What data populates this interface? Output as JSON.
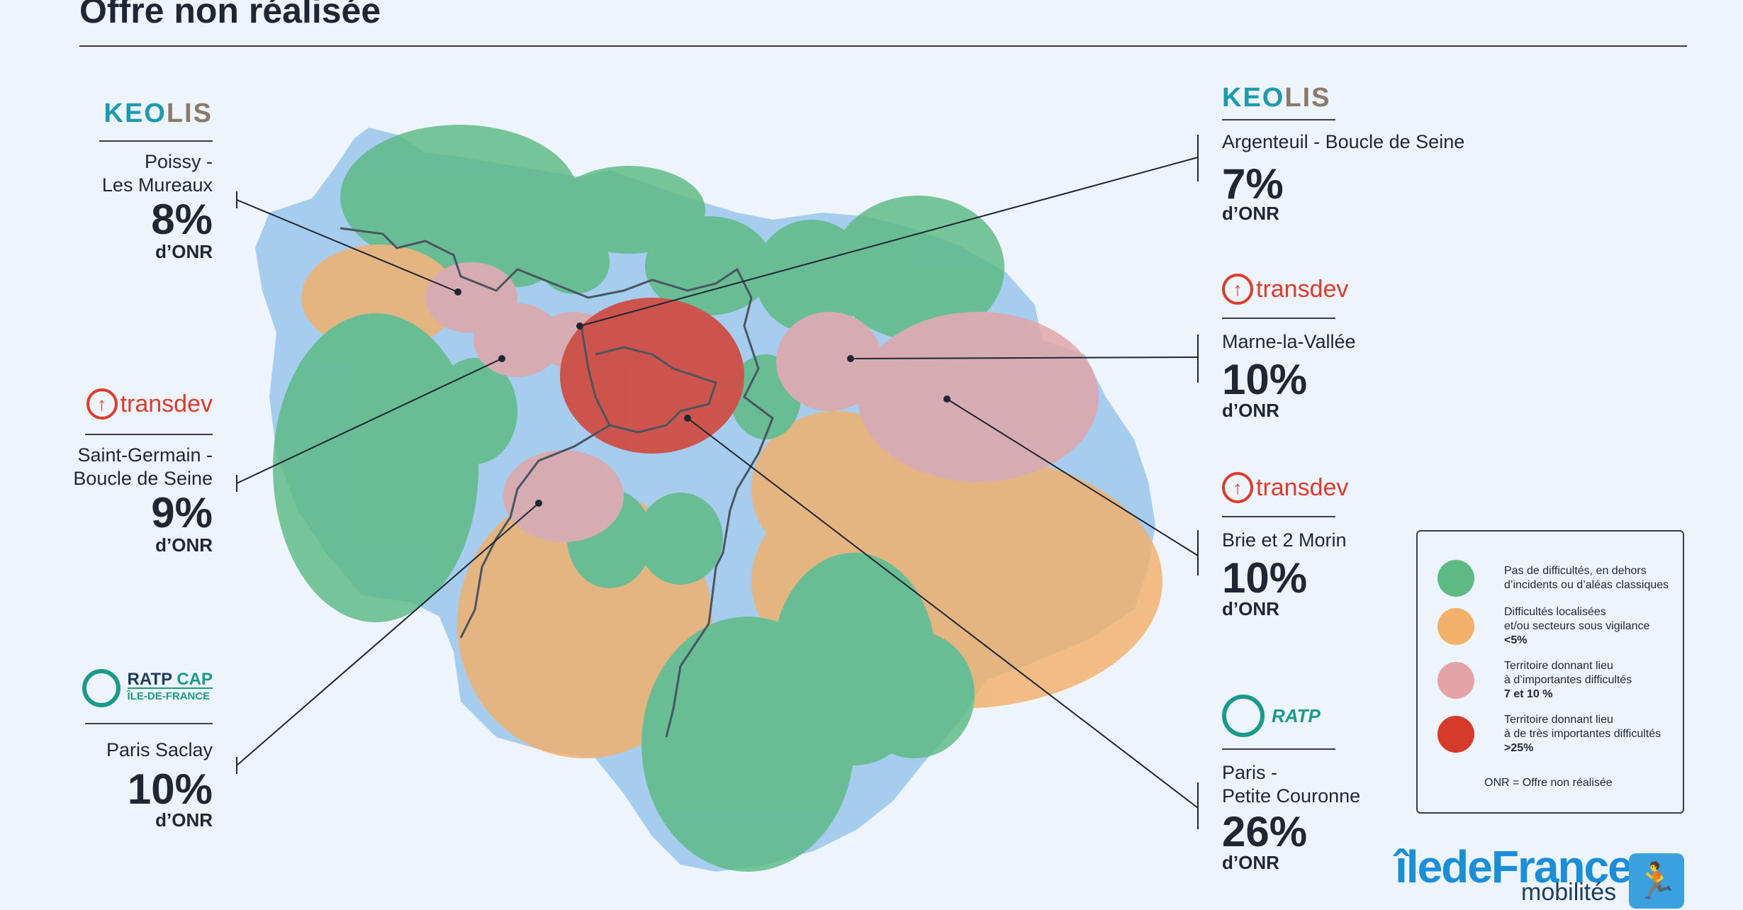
{
  "title": "Offre non réalisée",
  "colors": {
    "background": "#eef4fb",
    "territory": "#a6cdee",
    "green": "#5cba82",
    "orange": "#f2b06a",
    "pink": "#e2a4a6",
    "red": "#d63a2a",
    "border_line": "#4a5560"
  },
  "operators": [
    {
      "id": "keolis-poissy",
      "side": "left",
      "logo_name": "keolis",
      "logo_text": [
        "KEO",
        "LIS"
      ],
      "name": "Poissy -\nLes Mureaux",
      "percent": "8%",
      "onr": "d’ONR",
      "level": "pink"
    },
    {
      "id": "transdev-saint-germain",
      "side": "left",
      "logo_name": "transdev",
      "logo_text": "transdev",
      "name": "Saint-Germain -\nBoucle de Seine",
      "percent": "9%",
      "onr": "d’ONR",
      "level": "pink"
    },
    {
      "id": "ratpcap-paris-saclay",
      "side": "left",
      "logo_name": "ratp-cap",
      "logo_text": [
        "RATP",
        "CAP",
        "ÎLE-DE-FRANCE"
      ],
      "name": "Paris Saclay",
      "percent": "10%",
      "onr": "d’ONR",
      "level": "pink"
    },
    {
      "id": "keolis-argenteuil",
      "side": "right",
      "logo_name": "keolis",
      "logo_text": [
        "KEO",
        "LIS"
      ],
      "name": "Argenteuil - Boucle de Seine",
      "percent": "7%",
      "onr": "d’ONR",
      "level": "pink"
    },
    {
      "id": "transdev-marne-la-vallee",
      "side": "right",
      "logo_name": "transdev",
      "logo_text": "transdev",
      "name": "Marne-la-Vallée",
      "percent": "10%",
      "onr": "d’ONR",
      "level": "pink"
    },
    {
      "id": "transdev-brie",
      "side": "right",
      "logo_name": "transdev",
      "logo_text": "transdev",
      "name": "Brie et 2 Morin",
      "percent": "10%",
      "onr": "d’ONR",
      "level": "pink"
    },
    {
      "id": "ratp-paris",
      "side": "right",
      "logo_name": "ratp",
      "logo_text": "RATP",
      "name": "Paris -\nPetite Couronne",
      "percent": "26%",
      "onr": "d’ONR",
      "level": "red"
    }
  ],
  "legend": {
    "items": [
      {
        "level": "green",
        "label": "Pas de difficultés, en dehors\nd’incidents ou d’aléas classiques",
        "extra": ""
      },
      {
        "level": "orange",
        "label": "Difficultés localisées\net/ou secteurs sous vigilance",
        "extra": "<5%"
      },
      {
        "level": "pink",
        "label": "Territoire donnant lieu\nà d’importantes difficultés",
        "extra": "7 et 10 %"
      },
      {
        "level": "red",
        "label": "Territoire donnant lieu\nà de très importantes difficultés",
        "extra": ">25%"
      }
    ],
    "note": "ONR = Offre non réalisée"
  },
  "brand": {
    "word1": "îledeFrance",
    "word2": "mobilités",
    "icon": "runner-icon"
  }
}
